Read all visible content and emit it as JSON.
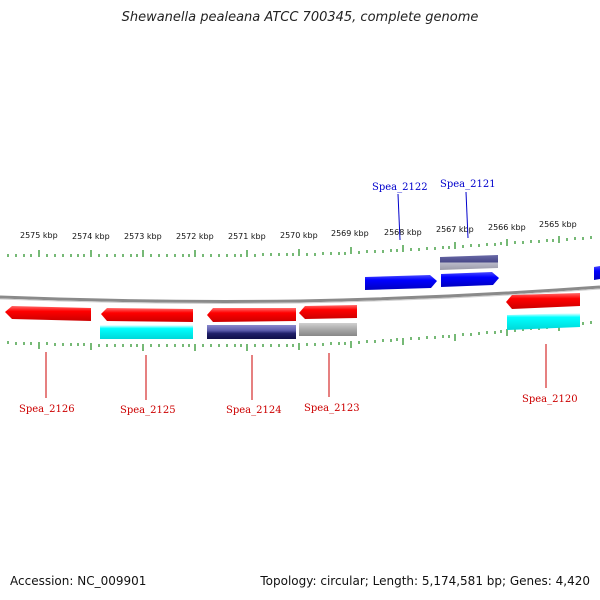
{
  "header": {
    "title": "Shewanella pealeana ATCC 700345, complete genome"
  },
  "footer": {
    "accession": "Accession: NC_009901",
    "topology": "Topology: circular; Length: 5,174,581 bp; Genes: 4,420"
  },
  "colors": {
    "tick": "#1a8a1a",
    "backbone": "#8a8a8a",
    "red_gene": "#ff0000",
    "blue_gene": "#0000ff",
    "cyan_feature": "#00ffff",
    "navy_feature": "#1c1c7a",
    "gray_feature": "#a0a0a0",
    "label_red": "#cc0000",
    "label_blue": "#0000cc"
  },
  "scale_labels": [
    "2575 kbp",
    "2574 kbp",
    "2573 kbp",
    "2572 kbp",
    "2571 kbp",
    "2570 kbp",
    "2569 kbp",
    "2568 kbp",
    "2567 kbp",
    "2566 kbp",
    "2565 kbp"
  ],
  "gene_labels": {
    "spea_2126": "Spea_2126",
    "spea_2125": "Spea_2125",
    "spea_2124": "Spea_2124",
    "spea_2123": "Spea_2123",
    "spea_2122": "Spea_2122",
    "spea_2121": "Spea_2121",
    "spea_2120": "Spea_2120"
  }
}
